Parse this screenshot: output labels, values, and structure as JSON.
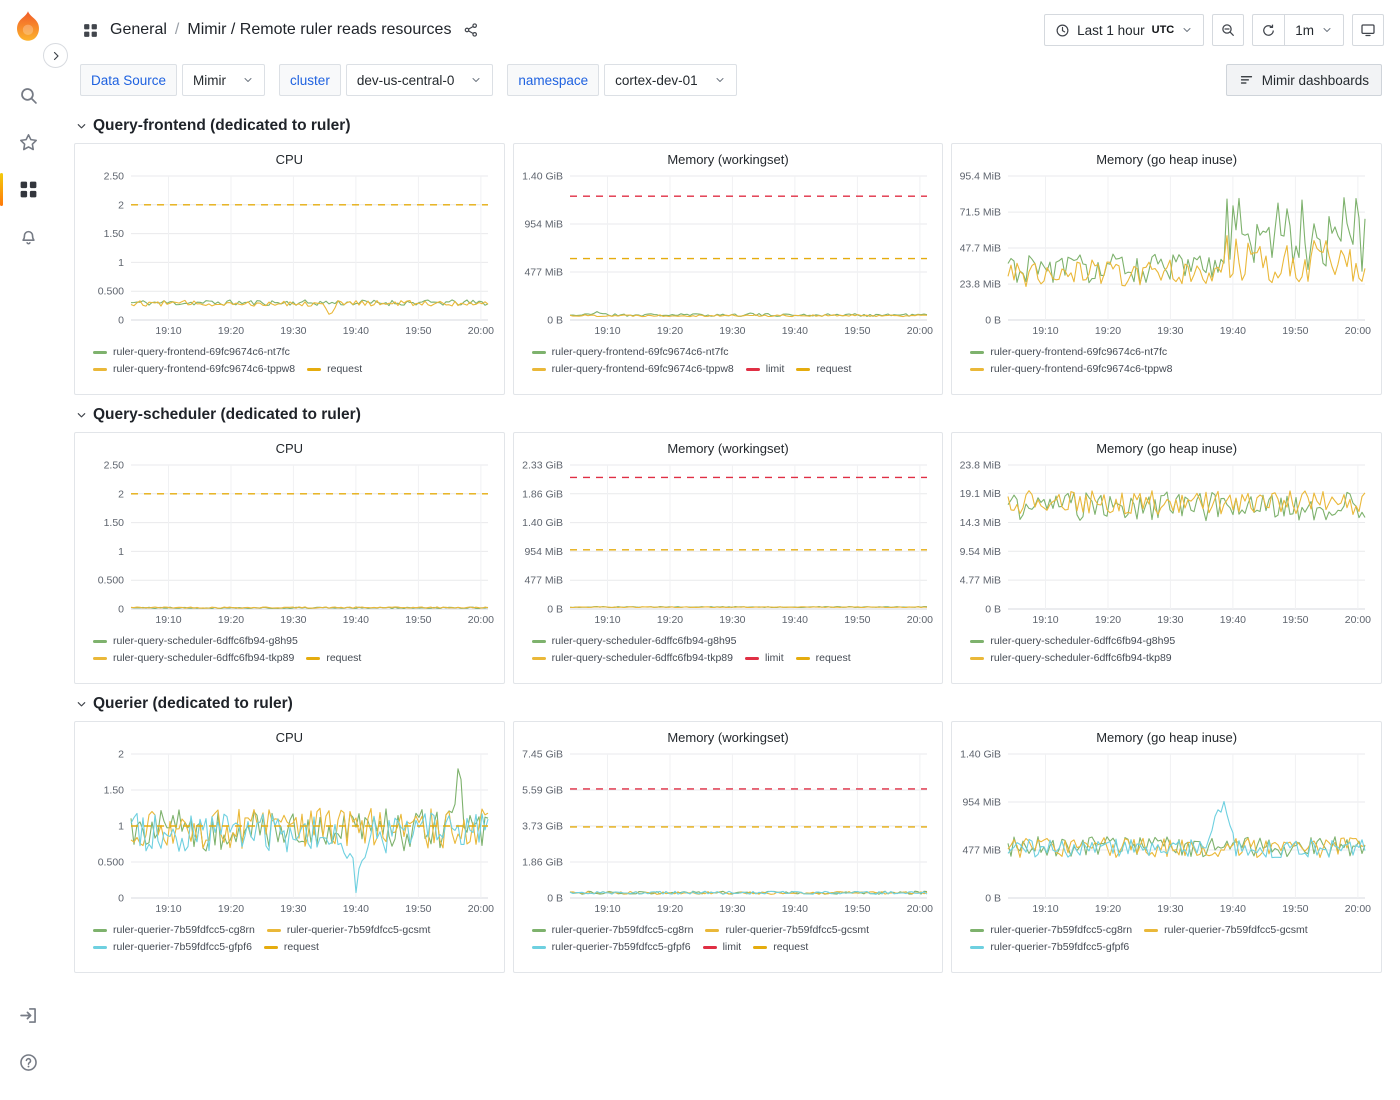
{
  "header": {
    "breadcrumb": {
      "folder": "General",
      "separator": "/",
      "dashboard": "Mimir / Remote ruler reads resources"
    },
    "time_picker": {
      "label": "Last 1 hour",
      "timezone": "UTC"
    },
    "refresh": {
      "interval": "1m"
    }
  },
  "variables": [
    {
      "label": "Data Source",
      "value": "Mimir"
    },
    {
      "label": "cluster",
      "value": "dev-us-central-0"
    },
    {
      "label": "namespace",
      "value": "cortex-dev-01"
    }
  ],
  "actions": {
    "mimir_dashboards": "Mimir dashboards"
  },
  "rows": [
    {
      "title": "Query-frontend (dedicated to ruler)"
    },
    {
      "title": "Query-scheduler (dedicated to ruler)"
    },
    {
      "title": "Querier (dedicated to ruler)"
    }
  ],
  "colors": {
    "series_green": "#7EB26D",
    "series_yellow": "#EAB839",
    "series_teal": "#6ED0E0",
    "request_dashed": "#E5AC0E",
    "limit_dashed": "#E02F44",
    "link_blue": "#1F62E0",
    "active_indicator": "#FF780A"
  },
  "icons": {
    "grafana-logo": "flame",
    "sidebar-expand": "chevron-right-circle",
    "search": "magnifier",
    "star": "star-outline",
    "dashboards": "grid-4-squares",
    "alerting": "bell",
    "sign-in": "door-arrow",
    "help": "question-circle",
    "breadcrumb-apps": "grid-4-squares",
    "share": "share-nodes",
    "clock": "clock",
    "zoom-out": "magnifier-minus",
    "refresh": "circular-arrow",
    "kiosk": "monitor",
    "mimir-dashboards": "list-lines",
    "row-collapse": "chevron-down",
    "dropdown-caret": "chevron-down"
  },
  "chart_data": [
    {
      "type": "line",
      "title": "CPU",
      "x_ticks": [
        "19:10",
        "19:20",
        "19:30",
        "19:40",
        "19:50",
        "20:00"
      ],
      "y_tick_labels": [
        "0",
        "0.500",
        "1",
        "1.50",
        "2",
        "2.50"
      ],
      "y_tick_values": [
        0,
        0.5,
        1,
        1.5,
        2,
        2.5
      ],
      "y_unit": "cores",
      "series": [
        {
          "name": "ruler-query-frontend-69fc9674c6-nt7fc",
          "color": "#7EB26D",
          "style": "solid",
          "approx_base": 0.3,
          "approx_jitter": 0.05,
          "seed": 11
        },
        {
          "name": "ruler-query-frontend-69fc9674c6-tppw8",
          "color": "#EAB839",
          "style": "solid",
          "approx_base": 0.29,
          "approx_jitter": 0.05,
          "seed": 12,
          "spikes": [
            {
              "pos": 0.56,
              "mag": -0.2,
              "width": 0.02
            }
          ]
        },
        {
          "name": "request",
          "color": "#E5AC0E",
          "style": "dashed",
          "value": 2
        }
      ]
    },
    {
      "type": "line",
      "title": "Memory (workingset)",
      "x_ticks": [
        "19:10",
        "19:20",
        "19:30",
        "19:40",
        "19:50",
        "20:00"
      ],
      "y_tick_labels": [
        "0 B",
        "477 MiB",
        "954 MiB",
        "1.40 GiB"
      ],
      "y_tick_values": [
        0,
        477,
        954,
        1431
      ],
      "y_unit": "MiB",
      "series": [
        {
          "name": "ruler-query-frontend-69fc9674c6-nt7fc",
          "color": "#7EB26D",
          "style": "solid",
          "approx_base": 50,
          "approx_jitter": 14,
          "seed": 21,
          "spikes": [
            {
              "pos": 0.08,
              "mag": 30,
              "width": 0.03
            },
            {
              "pos": 0.5,
              "mag": 20,
              "width": 0.02
            }
          ]
        },
        {
          "name": "ruler-query-frontend-69fc9674c6-tppw8",
          "color": "#EAB839",
          "style": "solid",
          "approx_base": 44,
          "approx_jitter": 10,
          "seed": 22
        },
        {
          "name": "limit",
          "color": "#E02F44",
          "style": "dashed",
          "value": 1230
        },
        {
          "name": "request",
          "color": "#E5AC0E",
          "style": "dashed",
          "value": 610
        }
      ]
    },
    {
      "type": "line",
      "title": "Memory (go heap inuse)",
      "x_ticks": [
        "19:10",
        "19:20",
        "19:30",
        "19:40",
        "19:50",
        "20:00"
      ],
      "y_tick_labels": [
        "0 B",
        "23.8 MiB",
        "47.7 MiB",
        "71.5 MiB",
        "95.4 MiB"
      ],
      "y_tick_values": [
        0,
        23.8,
        47.7,
        71.5,
        95.4
      ],
      "y_unit": "MiB",
      "series": [
        {
          "name": "ruler-query-frontend-69fc9674c6-nt7fc",
          "color": "#7EB26D",
          "style": "solid",
          "approx_base": 34,
          "approx_jitter": 10,
          "seed": 31,
          "phase2": {
            "start": 0.6,
            "base": 58,
            "jitter": 26
          }
        },
        {
          "name": "ruler-query-frontend-69fc9674c6-tppw8",
          "color": "#EAB839",
          "style": "solid",
          "approx_base": 31,
          "approx_jitter": 9,
          "seed": 32,
          "phase2": {
            "start": 0.6,
            "base": 40,
            "jitter": 16
          }
        }
      ]
    },
    {
      "type": "line",
      "title": "CPU",
      "x_ticks": [
        "19:10",
        "19:20",
        "19:30",
        "19:40",
        "19:50",
        "20:00"
      ],
      "y_tick_labels": [
        "0",
        "0.500",
        "1",
        "1.50",
        "2",
        "2.50"
      ],
      "y_tick_values": [
        0,
        0.5,
        1,
        1.5,
        2,
        2.5
      ],
      "y_unit": "cores",
      "series": [
        {
          "name": "ruler-query-scheduler-6dffc6fb94-g8h95",
          "color": "#7EB26D",
          "style": "solid",
          "approx_base": 0.02,
          "approx_jitter": 0.012,
          "seed": 41
        },
        {
          "name": "ruler-query-scheduler-6dffc6fb94-tkp89",
          "color": "#EAB839",
          "style": "solid",
          "approx_base": 0.025,
          "approx_jitter": 0.012,
          "seed": 42
        },
        {
          "name": "request",
          "color": "#E5AC0E",
          "style": "dashed",
          "value": 2
        }
      ]
    },
    {
      "type": "line",
      "title": "Memory (workingset)",
      "x_ticks": [
        "19:10",
        "19:20",
        "19:30",
        "19:40",
        "19:50",
        "20:00"
      ],
      "y_tick_labels": [
        "0 B",
        "477 MiB",
        "954 MiB",
        "1.40 GiB",
        "1.86 GiB",
        "2.33 GiB"
      ],
      "y_tick_values": [
        0,
        477,
        954,
        1431,
        1908,
        2385
      ],
      "y_unit": "MiB",
      "series": [
        {
          "name": "ruler-query-scheduler-6dffc6fb94-g8h95",
          "color": "#7EB26D",
          "style": "solid",
          "approx_base": 33,
          "approx_jitter": 7,
          "seed": 51
        },
        {
          "name": "ruler-query-scheduler-6dffc6fb94-tkp89",
          "color": "#EAB839",
          "style": "solid",
          "approx_base": 31,
          "approx_jitter": 6,
          "seed": 52
        },
        {
          "name": "limit",
          "color": "#E02F44",
          "style": "dashed",
          "value": 2180
        },
        {
          "name": "request",
          "color": "#E5AC0E",
          "style": "dashed",
          "value": 980
        }
      ]
    },
    {
      "type": "line",
      "title": "Memory (go heap inuse)",
      "x_ticks": [
        "19:10",
        "19:20",
        "19:30",
        "19:40",
        "19:50",
        "20:00"
      ],
      "y_tick_labels": [
        "0 B",
        "4.77 MiB",
        "9.54 MiB",
        "14.3 MiB",
        "19.1 MiB",
        "23.8 MiB"
      ],
      "y_tick_values": [
        0,
        4.77,
        9.54,
        14.3,
        19.1,
        23.8
      ],
      "y_unit": "MiB",
      "series": [
        {
          "name": "ruler-query-scheduler-6dffc6fb94-g8h95",
          "color": "#7EB26D",
          "style": "solid",
          "approx_base": 17,
          "approx_jitter": 2.4,
          "seed": 61
        },
        {
          "name": "ruler-query-scheduler-6dffc6fb94-tkp89",
          "color": "#EAB839",
          "style": "solid",
          "approx_base": 17.6,
          "approx_jitter": 2.0,
          "seed": 62
        }
      ]
    },
    {
      "type": "line",
      "title": "CPU",
      "x_ticks": [
        "19:10",
        "19:20",
        "19:30",
        "19:40",
        "19:50",
        "20:00"
      ],
      "y_tick_labels": [
        "0",
        "0.500",
        "1",
        "1.50",
        "2"
      ],
      "y_tick_values": [
        0,
        0.5,
        1,
        1.5,
        2
      ],
      "y_unit": "cores",
      "series": [
        {
          "name": "ruler-querier-7b59fdfcc5-cg8rn",
          "color": "#7EB26D",
          "style": "solid",
          "approx_base": 0.95,
          "approx_jitter": 0.3,
          "seed": 71,
          "spikes": [
            {
              "pos": 0.92,
              "mag": 0.8,
              "width": 0.015
            }
          ]
        },
        {
          "name": "ruler-querier-7b59fdfcc5-gcsmt",
          "color": "#EAB839",
          "style": "solid",
          "approx_base": 0.97,
          "approx_jitter": 0.28,
          "seed": 72,
          "spikes": [
            {
              "pos": 0.55,
              "mag": 0.45,
              "width": 0.015
            }
          ]
        },
        {
          "name": "ruler-querier-7b59fdfcc5-gfpf6",
          "color": "#6ED0E0",
          "style": "solid",
          "approx_base": 0.9,
          "approx_jitter": 0.28,
          "seed": 73,
          "spikes": [
            {
              "pos": 0.63,
              "mag": -0.72,
              "width": 0.03
            }
          ]
        },
        {
          "name": "request",
          "color": "#E5AC0E",
          "style": "dashed",
          "value": 1
        }
      ]
    },
    {
      "type": "line",
      "title": "Memory (workingset)",
      "x_ticks": [
        "19:10",
        "19:20",
        "19:30",
        "19:40",
        "19:50",
        "20:00"
      ],
      "y_tick_labels": [
        "0 B",
        "1.86 GiB",
        "3.73 GiB",
        "5.59 GiB",
        "7.45 GiB"
      ],
      "y_tick_values": [
        0,
        1908,
        3816,
        5724,
        7632
      ],
      "y_unit": "MiB",
      "series": [
        {
          "name": "ruler-querier-7b59fdfcc5-cg8rn",
          "color": "#7EB26D",
          "style": "solid",
          "approx_base": 280,
          "approx_jitter": 80,
          "seed": 81
        },
        {
          "name": "ruler-querier-7b59fdfcc5-gcsmt",
          "color": "#EAB839",
          "style": "solid",
          "approx_base": 270,
          "approx_jitter": 80,
          "seed": 82
        },
        {
          "name": "ruler-querier-7b59fdfcc5-gfpf6",
          "color": "#6ED0E0",
          "style": "solid",
          "approx_base": 275,
          "approx_jitter": 80,
          "seed": 83
        },
        {
          "name": "limit",
          "color": "#E02F44",
          "style": "dashed",
          "value": 5780
        },
        {
          "name": "request",
          "color": "#E5AC0E",
          "style": "dashed",
          "value": 3770
        }
      ]
    },
    {
      "type": "line",
      "title": "Memory (go heap inuse)",
      "x_ticks": [
        "19:10",
        "19:20",
        "19:30",
        "19:40",
        "19:50",
        "20:00"
      ],
      "y_tick_labels": [
        "0 B",
        "477 MiB",
        "954 MiB",
        "1.40 GiB"
      ],
      "y_tick_values": [
        0,
        477,
        954,
        1431
      ],
      "y_unit": "MiB",
      "series": [
        {
          "name": "ruler-querier-7b59fdfcc5-cg8rn",
          "color": "#7EB26D",
          "style": "solid",
          "approx_base": 510,
          "approx_jitter": 100,
          "seed": 91
        },
        {
          "name": "ruler-querier-7b59fdfcc5-gcsmt",
          "color": "#EAB839",
          "style": "solid",
          "approx_base": 500,
          "approx_jitter": 100,
          "seed": 92
        },
        {
          "name": "ruler-querier-7b59fdfcc5-gfpf6",
          "color": "#6ED0E0",
          "style": "solid",
          "approx_base": 490,
          "approx_jitter": 95,
          "seed": 93,
          "spikes": [
            {
              "pos": 0.6,
              "mag": 470,
              "width": 0.04
            }
          ]
        }
      ]
    }
  ]
}
